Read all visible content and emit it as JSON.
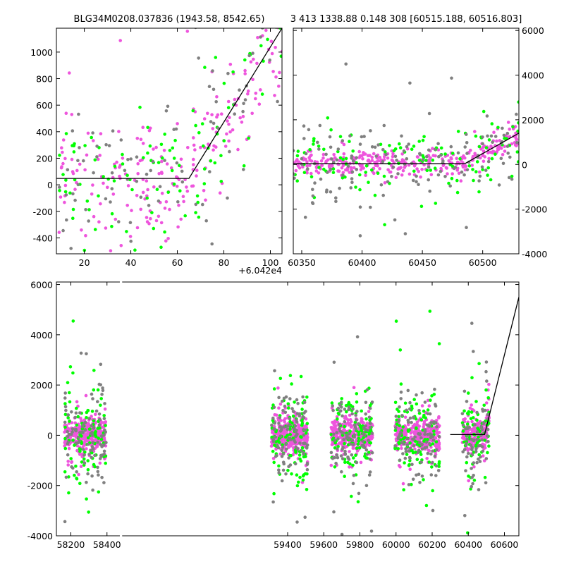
{
  "colors": {
    "green": "#00ff00",
    "pink": "#ee55dd",
    "gray": "#808080",
    "model": "#000000"
  },
  "chart_data": [
    {
      "type": "scatter",
      "panel": "top-left",
      "title": "BLG34M0208.037836 (1943.58, 8542.65)",
      "x_offset_label": "+6.042e4",
      "xlim": [
        8,
        105
      ],
      "ylim": [
        -520,
        1180
      ],
      "xticks": [
        "20",
        "40",
        "60",
        "80",
        "100"
      ],
      "yticks": [
        "-400",
        "-200",
        "0",
        "200",
        "400",
        "600",
        "800",
        "1000"
      ],
      "model_line": {
        "x": [
          8,
          65,
          105
        ],
        "y": [
          48,
          48,
          1180
        ]
      },
      "series": [
        {
          "color": "pink",
          "n": 230,
          "spread": 260,
          "seed": 11
        },
        {
          "color": "green",
          "n": 110,
          "spread": 280,
          "seed": 23
        },
        {
          "color": "gray",
          "n": 90,
          "spread": 300,
          "seed": 37
        }
      ]
    },
    {
      "type": "scatter",
      "panel": "top-right",
      "title": "3 413 1338.88 0.148 308 [60515.188, 60516.803]",
      "xlim": [
        60343,
        60530
      ],
      "ylim": [
        -4000,
        6100
      ],
      "xticks": [
        "60350",
        "60400",
        "60450",
        "60500"
      ],
      "yticks": [
        "-4000",
        "-2000",
        "0",
        "2000",
        "4000",
        "6000"
      ],
      "yaxis_side": "right",
      "model_line": {
        "x": [
          60343,
          60485,
          60530
        ],
        "y": [
          30,
          30,
          1400
        ]
      },
      "series": [
        {
          "color": "pink",
          "n": 330,
          "spread": 260,
          "seed": 41
        },
        {
          "color": "green",
          "n": 120,
          "spread": 750,
          "seed": 53
        },
        {
          "color": "gray",
          "n": 150,
          "spread": 750,
          "seed": 67
        }
      ]
    },
    {
      "type": "scatter",
      "panel": "bottom",
      "xlim": [
        58120,
        60680
      ],
      "ylim": [
        -4000,
        6100
      ],
      "xticks": [
        "58200",
        "58400",
        "59400",
        "59600",
        "59800",
        "60000",
        "60200",
        "60400",
        "60600"
      ],
      "yticks": [
        "-4000",
        "-2000",
        "0",
        "2000",
        "4000",
        "6000"
      ],
      "gap_x": [
        58475,
        58480
      ],
      "model_line": {
        "x": [
          60300,
          60490,
          60680
        ],
        "y": [
          30,
          30,
          5500
        ]
      },
      "seasons": [
        {
          "x": [
            58165,
            58395
          ],
          "n": 520
        },
        {
          "x": [
            59310,
            59510
          ],
          "n": 520
        },
        {
          "x": [
            59640,
            59870
          ],
          "n": 520
        },
        {
          "x": [
            59995,
            60240
          ],
          "n": 520
        },
        {
          "x": [
            60365,
            60515
          ],
          "n": 360
        }
      ],
      "series": [
        {
          "color": "pink",
          "share": 0.62,
          "spread": 300,
          "seed": 71
        },
        {
          "color": "green",
          "share": 0.19,
          "spread": 900,
          "seed": 83
        },
        {
          "color": "gray",
          "share": 0.19,
          "spread": 900,
          "seed": 97
        }
      ]
    }
  ]
}
